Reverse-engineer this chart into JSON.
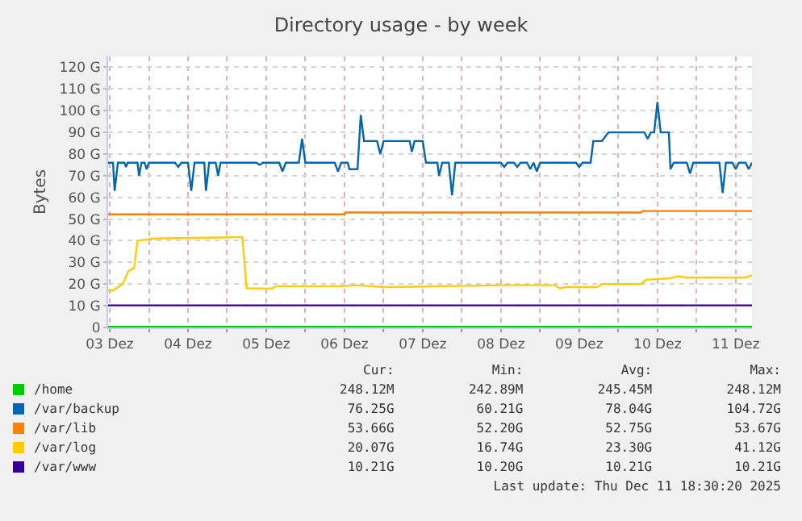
{
  "chart_data": {
    "type": "line",
    "title": "Directory usage - by week",
    "ylabel": "Bytes",
    "xlim": [
      "2025-12-03T11:30",
      "2025-12-11T17:00"
    ],
    "xticks": [
      {
        "value": "2025-12-03T12:00",
        "label": "03 Dez"
      },
      {
        "value": "2025-12-04T00:00",
        "label": null
      },
      {
        "value": "2025-12-04T12:00",
        "label": "04 Dez"
      },
      {
        "value": "2025-12-05T00:00",
        "label": null
      },
      {
        "value": "2025-12-05T12:00",
        "label": "05 Dez"
      },
      {
        "value": "2025-12-06T00:00",
        "label": null
      },
      {
        "value": "2025-12-06T12:00",
        "label": "06 Dez"
      },
      {
        "value": "2025-12-07T00:00",
        "label": null
      },
      {
        "value": "2025-12-07T12:00",
        "label": "07 Dez"
      },
      {
        "value": "2025-12-08T00:00",
        "label": null
      },
      {
        "value": "2025-12-08T12:00",
        "label": "08 Dez"
      },
      {
        "value": "2025-12-09T00:00",
        "label": null
      },
      {
        "value": "2025-12-09T12:00",
        "label": "09 Dez"
      },
      {
        "value": "2025-12-10T00:00",
        "label": null
      },
      {
        "value": "2025-12-10T12:00",
        "label": "10 Dez"
      },
      {
        "value": "2025-12-11T00:00",
        "label": null
      },
      {
        "value": "2025-12-11T12:00",
        "label": "11 Dez"
      }
    ],
    "ylim": [
      0,
      125
    ],
    "yticks": [
      0,
      {
        "value": 10,
        "label": "10 G"
      },
      {
        "value": 20,
        "label": "20 G"
      },
      {
        "value": 30,
        "label": "30 G"
      },
      {
        "value": 40,
        "label": "40 G"
      },
      {
        "value": 50,
        "label": "50 G"
      },
      {
        "value": 60,
        "label": "60 G"
      },
      {
        "value": 70,
        "label": "70 G"
      },
      {
        "value": 80,
        "label": "80 G"
      },
      {
        "value": 90,
        "label": "90 G"
      },
      {
        "value": 100,
        "label": "100 G"
      },
      {
        "value": 110,
        "label": "110 G"
      },
      {
        "value": 120,
        "label": "120 G"
      }
    ],
    "grid": true,
    "legend": "bottom",
    "marker": "none",
    "line_style": "solid",
    "series": [
      {
        "name": "/home",
        "color": "#00cc00",
        "x": [
          "2025-12-03T11:30",
          "2025-12-11T17:00"
        ],
        "values": [
          0.25,
          0.25
        ]
      },
      {
        "name": "/var/backup",
        "color": "#0066b3",
        "x": [
          "2025-12-03T11:30",
          "2025-12-03T13:00",
          "2025-12-03T13:30",
          "2025-12-03T14:30",
          "2025-12-03T16:30",
          "2025-12-03T17:00",
          "2025-12-03T17:30",
          "2025-12-03T20:30",
          "2025-12-03T21:00",
          "2025-12-03T21:45",
          "2025-12-03T22:40",
          "2025-12-03T23:20",
          "2025-12-04T00:00",
          "2025-12-04T08:00",
          "2025-12-04T09:00",
          "2025-12-04T10:00",
          "2025-12-04T12:00",
          "2025-12-04T13:00",
          "2025-12-04T14:00",
          "2025-12-04T17:00",
          "2025-12-04T17:30",
          "2025-12-04T18:30",
          "2025-12-04T20:30",
          "2025-12-04T21:15",
          "2025-12-04T22:00",
          "2025-12-05T09:00",
          "2025-12-05T10:00",
          "2025-12-05T11:00",
          "2025-12-05T16:00",
          "2025-12-05T17:00",
          "2025-12-05T18:00",
          "2025-12-05T22:00",
          "2025-12-05T23:00",
          "2025-12-06T00:00",
          "2025-12-06T09:00",
          "2025-12-06T10:00",
          "2025-12-06T11:00",
          "2025-12-06T13:00",
          "2025-12-06T13:30",
          "2025-12-06T16:00",
          "2025-12-06T17:00",
          "2025-12-06T18:00",
          "2025-12-06T22:00",
          "2025-12-06T23:00",
          "2025-12-07T00:00",
          "2025-12-07T08:00",
          "2025-12-07T08:40",
          "2025-12-07T09:30",
          "2025-12-07T12:00",
          "2025-12-07T13:00",
          "2025-12-07T16:30",
          "2025-12-07T17:00",
          "2025-12-07T18:00",
          "2025-12-07T20:00",
          "2025-12-07T21:00",
          "2025-12-07T22:00",
          "2025-12-08T12:00",
          "2025-12-08T13:00",
          "2025-12-08T14:00",
          "2025-12-08T16:00",
          "2025-12-08T17:00",
          "2025-12-08T18:00",
          "2025-12-08T20:00",
          "2025-12-08T21:00",
          "2025-12-08T22:00",
          "2025-12-08T23:00",
          "2025-12-09T00:00",
          "2025-12-09T11:00",
          "2025-12-09T12:00",
          "2025-12-09T13:00",
          "2025-12-09T15:30",
          "2025-12-09T16:20",
          "2025-12-09T19:00",
          "2025-12-09T21:00",
          "2025-12-10T08:00",
          "2025-12-10T09:00",
          "2025-12-10T10:00",
          "2025-12-10T11:00",
          "2025-12-10T12:00",
          "2025-12-10T13:00",
          "2025-12-10T15:30",
          "2025-12-10T16:00",
          "2025-12-10T17:00",
          "2025-12-10T21:00",
          "2025-12-10T22:00",
          "2025-12-10T23:00",
          "2025-12-11T07:00",
          "2025-12-11T08:00",
          "2025-12-11T09:00",
          "2025-12-11T11:00",
          "2025-12-11T12:00",
          "2025-12-11T13:00",
          "2025-12-11T15:00",
          "2025-12-11T16:00",
          "2025-12-11T17:00"
        ],
        "values": [
          76,
          76,
          63,
          76,
          76,
          74,
          76,
          76,
          70,
          76,
          76,
          73,
          76,
          76,
          74,
          76,
          76,
          63,
          76,
          76,
          63,
          76,
          76,
          70,
          76,
          76,
          75,
          76,
          76,
          72,
          76,
          76,
          87,
          76,
          76,
          72,
          76,
          76,
          73,
          73,
          98,
          86,
          86,
          80,
          86,
          86,
          81,
          86,
          86,
          76,
          76,
          70,
          76,
          76,
          61,
          76,
          76,
          74,
          76,
          76,
          74,
          76,
          76,
          73,
          76,
          72,
          76,
          76,
          74,
          76,
          76,
          86,
          86,
          90,
          90,
          87,
          90,
          90,
          104,
          90,
          90,
          73,
          76,
          76,
          71,
          76,
          76,
          62,
          76,
          76,
          73,
          76,
          76,
          73,
          76
        ]
      },
      {
        "name": "/var/lib",
        "color": "#ff8000",
        "x": [
          "2025-12-03T11:30",
          "2025-12-06T12:00",
          "2025-12-06T12:30",
          "2025-12-10T07:00",
          "2025-12-10T07:30",
          "2025-12-11T17:00"
        ],
        "values": [
          52.2,
          52.2,
          53,
          53,
          53.7,
          53.7
        ]
      },
      {
        "name": "/var/log",
        "color": "#ffcc00",
        "x": [
          "2025-12-03T11:30",
          "2025-12-03T13:00",
          "2025-12-03T16:00",
          "2025-12-03T17:45",
          "2025-12-03T19:30",
          "2025-12-03T20:30",
          "2025-12-04T01:30",
          "2025-12-04T23:00",
          "2025-12-05T04:40",
          "2025-12-05T06:00",
          "2025-12-05T14:00",
          "2025-12-05T15:00",
          "2025-12-06T11:00",
          "2025-12-06T15:30",
          "2025-12-07T00:30",
          "2025-12-08T12:40",
          "2025-12-09T04:30",
          "2025-12-09T06:00",
          "2025-12-09T08:00",
          "2025-12-09T17:30",
          "2025-12-09T19:00",
          "2025-12-10T07:00",
          "2025-12-10T08:30",
          "2025-12-10T16:00",
          "2025-12-10T18:30",
          "2025-12-10T21:00",
          "2025-12-11T15:00",
          "2025-12-11T17:00"
        ],
        "values": [
          17.2,
          17,
          20,
          26,
          27.4,
          40,
          41,
          41.5,
          41.7,
          18,
          18,
          19,
          19,
          19.5,
          18.6,
          19.5,
          19.5,
          18,
          18.6,
          18.6,
          20,
          20,
          22,
          22.7,
          23.6,
          23,
          23,
          24
        ]
      },
      {
        "name": "/var/www",
        "color": "#330099",
        "x": [
          "2025-12-03T11:30",
          "2025-12-11T17:00"
        ],
        "values": [
          10.2,
          10.2
        ]
      }
    ],
    "annotations": [
      "Cur:",
      "Min:",
      "Avg:",
      "Max:",
      "248.12M",
      "242.89M",
      "245.45M",
      "248.12M",
      "76.25G",
      "60.21G",
      "78.04G",
      "104.72G",
      "53.66G",
      "52.20G",
      "52.75G",
      "53.67G",
      "20.07G",
      "16.74G",
      "23.30G",
      "41.12G",
      "10.21G",
      "10.20G",
      "10.21G",
      "10.21G",
      "Last update: Thu Dec 11 18:30:20 2025"
    ]
  }
}
